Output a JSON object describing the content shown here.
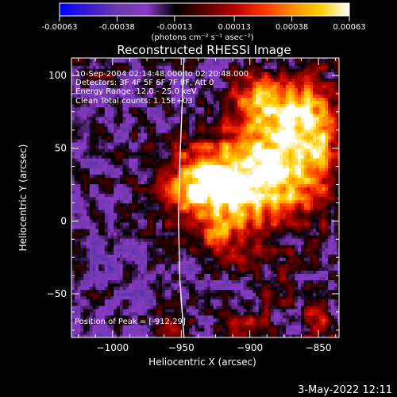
{
  "colorbar": {
    "ticks": [
      "-0.00063",
      "-0.00038",
      "-0.00013",
      "0.00013",
      "0.00038",
      "0.00063"
    ],
    "range": [
      -0.00063,
      0.00063
    ],
    "unit_label": "(photons cm⁻² s⁻¹ asec⁻²)",
    "colors": [
      "#0000ff",
      "#3a1ad0",
      "#6a3aa8",
      "#8a3ac8",
      "#000000",
      "#5a0000",
      "#b00000",
      "#ff3000",
      "#ff8800",
      "#ffd000",
      "#ffffff"
    ]
  },
  "image": {
    "title": "Reconstructed RHESSI Image",
    "info": [
      "10-Sep-2004 02:14:48.000 to 02:20:48.000",
      "Detectors: 3F 4F 5F 6F 7F 8F, Att 0",
      "Energy Range: 12.0 - 25.0 keV",
      "Clean    Total counts: 1.15E+03"
    ],
    "peak_label": "Position of Peak = [-912,29]",
    "footer_date": "3-May-2022 12:11"
  },
  "chart_data": {
    "type": "heatmap",
    "title": "Reconstructed RHESSI Image",
    "xlabel": "Heliocentric X (arcsec)",
    "ylabel": "Heliocentric Y (arcsec)",
    "xlim": [
      -1030,
      -835
    ],
    "ylim": [
      -80,
      112
    ],
    "xticks": [
      -1000,
      -950,
      -900,
      -850
    ],
    "yticks": [
      -50,
      0,
      50,
      100
    ],
    "limb_curve": [
      [
        -948,
        -80
      ],
      [
        -951,
        -40
      ],
      [
        -952,
        0
      ],
      [
        -951,
        40
      ],
      [
        -948,
        112
      ]
    ],
    "sources": [
      {
        "x": -912,
        "y": 29,
        "sx": 32,
        "sy": 22,
        "amp": 0.00063
      },
      {
        "x": -935,
        "y": 22,
        "sx": 16,
        "sy": 14,
        "amp": 0.00052
      },
      {
        "x": -880,
        "y": 40,
        "sx": 25,
        "sy": 30,
        "amp": 0.0005
      },
      {
        "x": -872,
        "y": 78,
        "sx": 18,
        "sy": 18,
        "amp": 0.00045
      },
      {
        "x": -900,
        "y": 85,
        "sx": 12,
        "sy": 10,
        "amp": 0.00032
      },
      {
        "x": -850,
        "y": 55,
        "sx": 14,
        "sy": 30,
        "amp": 0.00036
      },
      {
        "x": -920,
        "y": -10,
        "sx": 20,
        "sy": 12,
        "amp": 0.00028
      },
      {
        "x": -880,
        "y": -45,
        "sx": 14,
        "sy": 10,
        "amp": 0.00022
      },
      {
        "x": -900,
        "y": -72,
        "sx": 12,
        "sy": 8,
        "amp": 0.0003
      },
      {
        "x": -850,
        "y": -70,
        "sx": 10,
        "sy": 12,
        "amp": 0.0003
      },
      {
        "x": -955,
        "y": -72,
        "sx": 10,
        "sy": 8,
        "amp": 0.00025
      },
      {
        "x": -1015,
        "y": 110,
        "sx": 14,
        "sy": 8,
        "amp": 0.00016
      }
    ],
    "grid": false
  }
}
